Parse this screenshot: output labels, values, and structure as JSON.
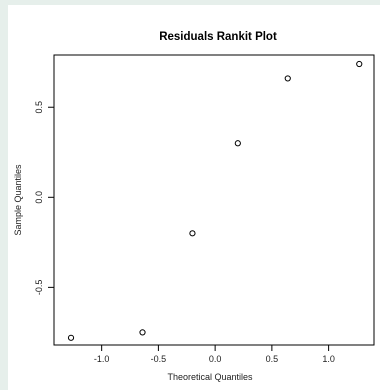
{
  "chart_data": {
    "type": "scatter",
    "title": "Residuals Rankit Plot",
    "xlabel": "Theoretical Quantiles",
    "ylabel": "Sample Quantiles",
    "xlim": [
      -1.42,
      1.4
    ],
    "ylim": [
      -0.82,
      0.79
    ],
    "x_ticks": [
      -1.0,
      -0.5,
      0.0,
      0.5,
      1.0
    ],
    "x_tick_labels": [
      "-1.0",
      "-0.5",
      "0.0",
      "0.5",
      "1.0"
    ],
    "y_ticks": [
      -0.5,
      0.0,
      0.5
    ],
    "y_tick_labels": [
      "-0.5",
      "0.0",
      "0.5"
    ],
    "grid": false,
    "points": [
      {
        "x": -1.27,
        "y": -0.78
      },
      {
        "x": -0.64,
        "y": -0.75
      },
      {
        "x": -0.2,
        "y": -0.2
      },
      {
        "x": 0.2,
        "y": 0.3
      },
      {
        "x": 0.64,
        "y": 0.66
      },
      {
        "x": 1.27,
        "y": 0.74
      }
    ]
  }
}
